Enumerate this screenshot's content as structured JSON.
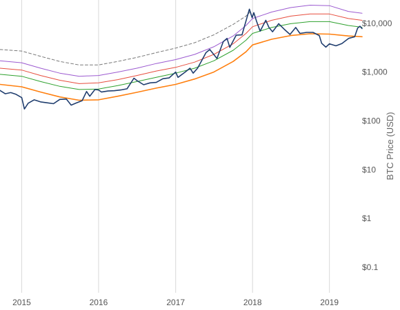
{
  "chart_data": {
    "type": "line",
    "title": "",
    "xlabel": "",
    "ylabel": "BTC Price (USD)",
    "y_scale": "log",
    "ylim": [
      0.03,
      30000
    ],
    "xlim": [
      "2014-09-20",
      "2019-06-05"
    ],
    "grid": {
      "x": true,
      "y": false
    },
    "x_ticks": [
      {
        "label": "2015",
        "date": "2015-01-01"
      },
      {
        "label": "2016",
        "date": "2016-01-01"
      },
      {
        "label": "2017",
        "date": "2017-01-01"
      },
      {
        "label": "2018",
        "date": "2018-01-01"
      },
      {
        "label": "2019",
        "date": "2019-01-01"
      }
    ],
    "y_ticks": [
      {
        "label": "$10,000",
        "value": 10000
      },
      {
        "label": "$1,000",
        "value": 1000
      },
      {
        "label": "$100",
        "value": 100
      },
      {
        "label": "$10",
        "value": 10
      },
      {
        "label": "$1",
        "value": 1
      },
      {
        "label": "$0.1",
        "value": 0.1
      }
    ],
    "series": [
      {
        "style": "dashed",
        "color": "#777777",
        "points": [
          [
            "2014-09-20",
            2900
          ],
          [
            "2015-01-01",
            2700
          ],
          [
            "2015-04-01",
            2100
          ],
          [
            "2015-07-01",
            1650
          ],
          [
            "2015-10-01",
            1400
          ],
          [
            "2016-01-01",
            1400
          ],
          [
            "2016-04-01",
            1650
          ],
          [
            "2016-07-01",
            2000
          ],
          [
            "2016-10-01",
            2500
          ],
          [
            "2017-01-01",
            3100
          ],
          [
            "2017-04-01",
            4000
          ],
          [
            "2017-07-01",
            5800
          ],
          [
            "2017-10-01",
            9500
          ],
          [
            "2017-12-01",
            14000
          ],
          [
            "2017-12-20",
            17000
          ]
        ]
      },
      {
        "style": "solid",
        "color": "#9b59d0",
        "points": [
          [
            "2014-09-20",
            1700
          ],
          [
            "2015-01-01",
            1550
          ],
          [
            "2015-04-01",
            1200
          ],
          [
            "2015-07-01",
            950
          ],
          [
            "2015-10-01",
            820
          ],
          [
            "2016-01-01",
            850
          ],
          [
            "2016-04-01",
            1000
          ],
          [
            "2016-07-01",
            1200
          ],
          [
            "2016-10-01",
            1500
          ],
          [
            "2017-01-01",
            1800
          ],
          [
            "2017-04-01",
            2300
          ],
          [
            "2017-07-01",
            3300
          ],
          [
            "2017-10-01",
            5500
          ],
          [
            "2017-12-01",
            9000
          ],
          [
            "2018-01-01",
            12500
          ],
          [
            "2018-04-01",
            17000
          ],
          [
            "2018-07-01",
            21000
          ],
          [
            "2018-10-01",
            23500
          ],
          [
            "2019-01-01",
            23000
          ],
          [
            "2019-04-01",
            17500
          ],
          [
            "2019-06-05",
            16000
          ]
        ]
      },
      {
        "style": "solid",
        "color": "#e74c3c",
        "points": [
          [
            "2014-09-20",
            1200
          ],
          [
            "2015-01-01",
            1100
          ],
          [
            "2015-04-01",
            850
          ],
          [
            "2015-07-01",
            680
          ],
          [
            "2015-10-01",
            580
          ],
          [
            "2016-01-01",
            600
          ],
          [
            "2016-04-01",
            700
          ],
          [
            "2016-07-01",
            850
          ],
          [
            "2016-10-01",
            1050
          ],
          [
            "2017-01-01",
            1250
          ],
          [
            "2017-04-01",
            1600
          ],
          [
            "2017-07-01",
            2300
          ],
          [
            "2017-10-01",
            3800
          ],
          [
            "2017-12-01",
            6200
          ],
          [
            "2018-01-01",
            8500
          ],
          [
            "2018-04-01",
            11500
          ],
          [
            "2018-07-01",
            14000
          ],
          [
            "2018-10-01",
            15500
          ],
          [
            "2019-01-01",
            15500
          ],
          [
            "2019-04-01",
            12500
          ],
          [
            "2019-06-05",
            11500
          ]
        ]
      },
      {
        "style": "solid",
        "color": "#2ca02c",
        "points": [
          [
            "2014-09-20",
            900
          ],
          [
            "2015-01-01",
            820
          ],
          [
            "2015-04-01",
            640
          ],
          [
            "2015-07-01",
            510
          ],
          [
            "2015-10-01",
            440
          ],
          [
            "2016-01-01",
            450
          ],
          [
            "2016-04-01",
            530
          ],
          [
            "2016-07-01",
            640
          ],
          [
            "2016-10-01",
            780
          ],
          [
            "2017-01-01",
            950
          ],
          [
            "2017-04-01",
            1200
          ],
          [
            "2017-07-01",
            1700
          ],
          [
            "2017-10-01",
            2800
          ],
          [
            "2017-12-01",
            4500
          ],
          [
            "2018-01-01",
            6200
          ],
          [
            "2018-04-01",
            8200
          ],
          [
            "2018-07-01",
            9800
          ],
          [
            "2018-10-01",
            10800
          ],
          [
            "2019-01-01",
            10800
          ],
          [
            "2019-04-01",
            9000
          ],
          [
            "2019-06-05",
            8300
          ]
        ]
      },
      {
        "style": "solid",
        "color": "#ff7f0e",
        "points": [
          [
            "2014-09-20",
            560
          ],
          [
            "2015-01-01",
            500
          ],
          [
            "2015-04-01",
            390
          ],
          [
            "2015-07-01",
            310
          ],
          [
            "2015-10-01",
            265
          ],
          [
            "2016-01-01",
            270
          ],
          [
            "2016-04-01",
            320
          ],
          [
            "2016-07-01",
            385
          ],
          [
            "2016-10-01",
            470
          ],
          [
            "2017-01-01",
            560
          ],
          [
            "2017-04-01",
            720
          ],
          [
            "2017-07-01",
            1000
          ],
          [
            "2017-10-01",
            1650
          ],
          [
            "2017-12-01",
            2600
          ],
          [
            "2018-01-01",
            3600
          ],
          [
            "2018-04-01",
            4700
          ],
          [
            "2018-07-01",
            5600
          ],
          [
            "2018-10-01",
            6100
          ],
          [
            "2019-01-01",
            6000
          ],
          [
            "2019-04-01",
            5500
          ],
          [
            "2019-06-05",
            5300
          ]
        ]
      },
      {
        "style": "solid",
        "color": "#1f3d6e",
        "points": [
          [
            "2014-09-20",
            420
          ],
          [
            "2014-10-15",
            360
          ],
          [
            "2014-11-10",
            380
          ],
          [
            "2014-12-05",
            350
          ],
          [
            "2015-01-01",
            300
          ],
          [
            "2015-01-14",
            175
          ],
          [
            "2015-02-01",
            230
          ],
          [
            "2015-03-01",
            270
          ],
          [
            "2015-04-01",
            245
          ],
          [
            "2015-05-01",
            235
          ],
          [
            "2015-06-01",
            225
          ],
          [
            "2015-07-01",
            275
          ],
          [
            "2015-08-01",
            280
          ],
          [
            "2015-08-24",
            210
          ],
          [
            "2015-09-15",
            230
          ],
          [
            "2015-10-15",
            260
          ],
          [
            "2015-11-05",
            400
          ],
          [
            "2015-11-20",
            320
          ],
          [
            "2015-12-15",
            440
          ],
          [
            "2016-01-01",
            430
          ],
          [
            "2016-01-15",
            390
          ],
          [
            "2016-02-15",
            410
          ],
          [
            "2016-03-15",
            415
          ],
          [
            "2016-04-15",
            430
          ],
          [
            "2016-05-15",
            455
          ],
          [
            "2016-06-17",
            750
          ],
          [
            "2016-07-01",
            670
          ],
          [
            "2016-08-02",
            550
          ],
          [
            "2016-09-01",
            600
          ],
          [
            "2016-10-01",
            615
          ],
          [
            "2016-11-01",
            730
          ],
          [
            "2016-12-01",
            760
          ],
          [
            "2017-01-01",
            1000
          ],
          [
            "2017-01-12",
            780
          ],
          [
            "2017-02-15",
            1000
          ],
          [
            "2017-03-10",
            1200
          ],
          [
            "2017-03-25",
            950
          ],
          [
            "2017-04-15",
            1200
          ],
          [
            "2017-05-25",
            2500
          ],
          [
            "2017-06-12",
            2900
          ],
          [
            "2017-07-16",
            1900
          ],
          [
            "2017-08-15",
            4200
          ],
          [
            "2017-09-02",
            4900
          ],
          [
            "2017-09-15",
            3200
          ],
          [
            "2017-10-15",
            5700
          ],
          [
            "2017-11-12",
            5800
          ],
          [
            "2017-12-17",
            19500
          ],
          [
            "2017-12-30",
            13000
          ],
          [
            "2018-01-07",
            16500
          ],
          [
            "2018-01-20",
            11000
          ],
          [
            "2018-02-06",
            6900
          ],
          [
            "2018-03-05",
            11500
          ],
          [
            "2018-03-20",
            8200
          ],
          [
            "2018-04-06",
            6700
          ],
          [
            "2018-05-05",
            9800
          ],
          [
            "2018-06-01",
            7500
          ],
          [
            "2018-06-28",
            5900
          ],
          [
            "2018-07-25",
            8200
          ],
          [
            "2018-08-14",
            6200
          ],
          [
            "2018-09-15",
            6500
          ],
          [
            "2018-10-15",
            6500
          ],
          [
            "2018-11-14",
            5600
          ],
          [
            "2018-11-25",
            3900
          ],
          [
            "2018-12-15",
            3250
          ],
          [
            "2019-01-01",
            3800
          ],
          [
            "2019-02-01",
            3450
          ],
          [
            "2019-03-01",
            3850
          ],
          [
            "2019-04-02",
            4900
          ],
          [
            "2019-05-01",
            5300
          ],
          [
            "2019-05-15",
            8000
          ],
          [
            "2019-05-26",
            8700
          ],
          [
            "2019-06-05",
            7800
          ]
        ]
      }
    ]
  }
}
